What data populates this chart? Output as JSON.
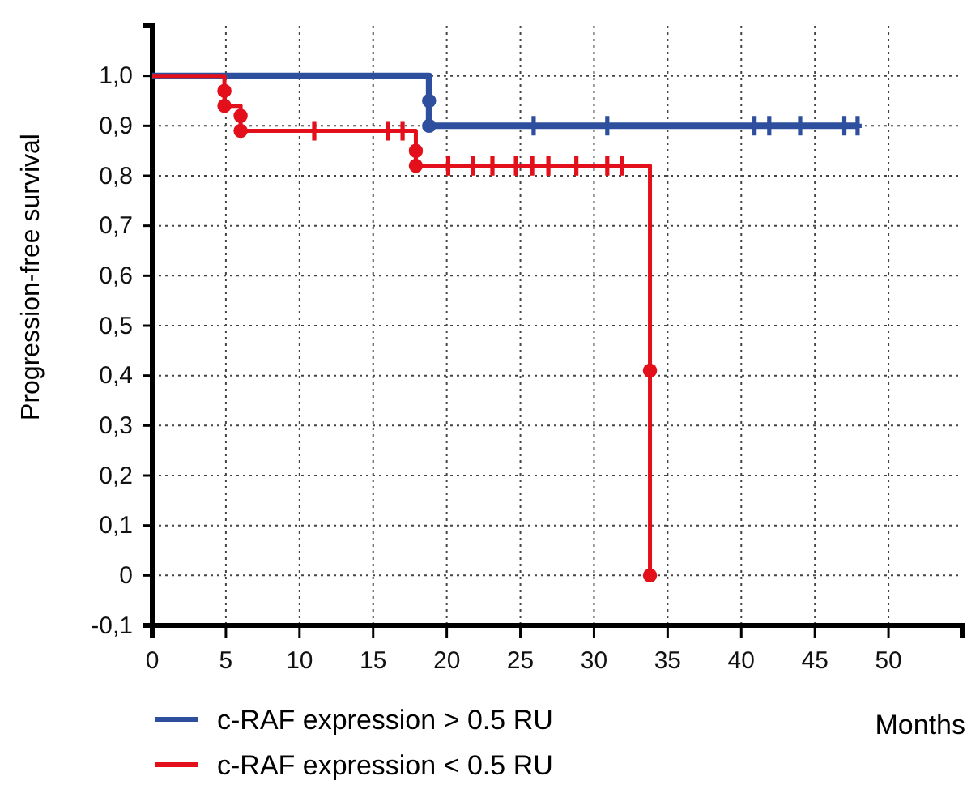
{
  "chart_data": {
    "type": "step",
    "xlabel": "Months",
    "ylabel": "Progression-free survival",
    "xlim": [
      0,
      55
    ],
    "xticks": [
      0,
      5,
      10,
      15,
      20,
      25,
      30,
      35,
      40,
      45,
      50
    ],
    "ylim": [
      -0.1,
      1.1
    ],
    "yticks": [
      {
        "value": -0.1,
        "label": "-0,1"
      },
      {
        "value": 0,
        "label": "0"
      },
      {
        "value": 0.1,
        "label": "0,1"
      },
      {
        "value": 0.2,
        "label": "0,2"
      },
      {
        "value": 0.3,
        "label": "0,3"
      },
      {
        "value": 0.4,
        "label": "0,4"
      },
      {
        "value": 0.5,
        "label": "0,5"
      },
      {
        "value": 0.6,
        "label": "0,6"
      },
      {
        "value": 0.7,
        "label": "0,7"
      },
      {
        "value": 0.8,
        "label": "0,8"
      },
      {
        "value": 0.9,
        "label": "0,9"
      },
      {
        "value": 1.0,
        "label": "1,0"
      }
    ],
    "grid": true,
    "legend": "bottom left",
    "line_style": "solid",
    "series": [
      {
        "name": "c-RAF expression > 0.5 RU",
        "color": "#2e4f9e",
        "marker": "none",
        "x": [
          0,
          18.8,
          47.9
        ],
        "values": [
          1.0,
          0.9,
          0.9
        ]
      },
      {
        "name": "c-RAF expression < 0.5 RU",
        "color": "#e30f1b",
        "marker": "none",
        "x": [
          0,
          4.9,
          6.0,
          17.9,
          33.8
        ],
        "values": [
          1.0,
          0.94,
          0.89,
          0.82,
          0
        ]
      },
      {
        "type": "scatter",
        "color": "#2e4f9e",
        "marker": "circle",
        "x": [
          18.8,
          18.8
        ],
        "values": [
          0.95,
          0.9
        ]
      },
      {
        "type": "scatter",
        "color": "#e30f1b",
        "marker": "circle",
        "x": [
          4.9,
          4.9,
          6.0,
          6.0,
          17.9,
          17.9,
          33.8,
          33.8
        ],
        "values": [
          0.97,
          0.94,
          0.92,
          0.89,
          0.85,
          0.82,
          0.41,
          0
        ]
      },
      {
        "type": "scatter",
        "color": "#2e4f9e",
        "marker": "cross",
        "x": [
          25.9,
          30.9,
          40.9,
          41.9,
          44.0,
          47.0,
          47.9
        ],
        "values": [
          0.9,
          0.9,
          0.9,
          0.9,
          0.9,
          0.9,
          0.9
        ]
      },
      {
        "type": "scatter",
        "color": "#e30f1b",
        "marker": "cross",
        "x": [
          11.0,
          16.0,
          17.0,
          20.1,
          21.8,
          23.1,
          24.7,
          25.8,
          26.9,
          28.8,
          30.9,
          31.9
        ],
        "values": [
          0.89,
          0.89,
          0.89,
          0.82,
          0.82,
          0.82,
          0.82,
          0.82,
          0.82,
          0.82,
          0.82,
          0.82
        ]
      }
    ]
  }
}
